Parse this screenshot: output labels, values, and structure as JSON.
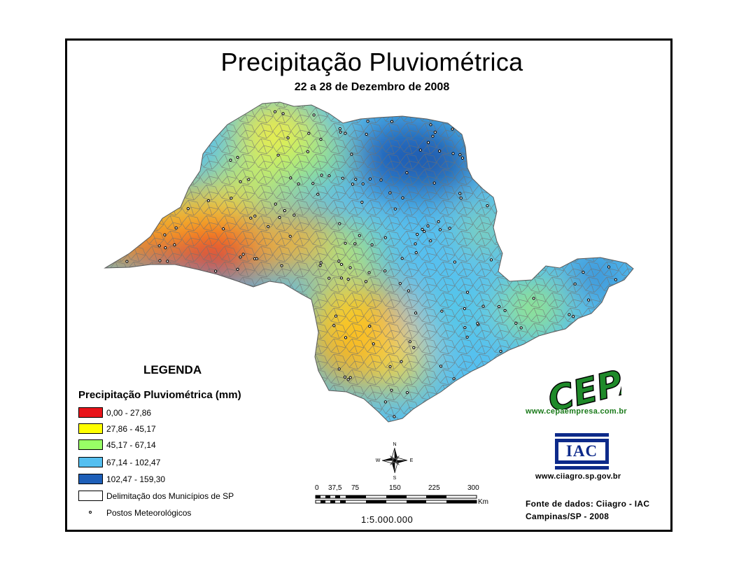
{
  "map": {
    "title": "Precipitação Pluviométrica",
    "subtitle": "22 a 28 de Dezembro de 2008",
    "region": "São Paulo state municipalities",
    "legend_heading": "LEGENDA",
    "legend_title": "Precipitação Pluviométrica (mm)",
    "legend_items": [
      {
        "label": "0,00 - 27,86",
        "color": "#e8141a"
      },
      {
        "label": "27,86 - 45,17",
        "color": "#ffff00"
      },
      {
        "label": "45,17 - 67,14",
        "color": "#99ff66"
      },
      {
        "label": "67,14 - 102,47",
        "color": "#55bff0"
      },
      {
        "label": "102,47 - 159,30",
        "color": "#1e5fb8"
      },
      {
        "label": "Delimitação dos Municípios de SP",
        "color": "#ffffff"
      },
      {
        "label": "Postos Meteorológicos",
        "color": "#000000"
      }
    ],
    "scale": {
      "ticks": [
        "0",
        "37,5",
        "75",
        "150",
        "225",
        "300"
      ],
      "unit": "Km",
      "ratio": "1:5.000.000"
    },
    "compass": {
      "n": "N",
      "s": "S",
      "e": "E",
      "w": "W"
    },
    "logos": {
      "cepa_text": "CEPA",
      "cepa_url": "www.cepaempresa.com.br",
      "iac_text": "IAC",
      "iac_url": "www.ciiagro.sp.gov.br"
    },
    "credits": {
      "line1": "Fonte de dados: Ciiagro - IAC",
      "line2": "Campinas/SP - 2008"
    }
  }
}
